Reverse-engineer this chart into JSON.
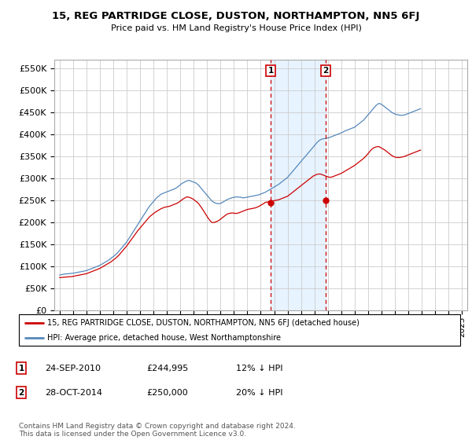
{
  "title": "15, REG PARTRIDGE CLOSE, DUSTON, NORTHAMPTON, NN5 6FJ",
  "subtitle": "Price paid vs. HM Land Registry's House Price Index (HPI)",
  "hpi_color": "#5588bb",
  "price_color": "#cc0000",
  "purchase1_date": 2010.73,
  "purchase1_price": 244995,
  "purchase2_date": 2014.83,
  "purchase2_price": 250000,
  "bg_color": "#ffffff",
  "grid_color": "#cccccc",
  "shade_color": "#ddeeff",
  "legend_line1": "15, REG PARTRIDGE CLOSE, DUSTON, NORTHAMPTON, NN5 6FJ (detached house)",
  "legend_line2": "HPI: Average price, detached house, West Northamptonshire",
  "footnote": "Contains HM Land Registry data © Crown copyright and database right 2024.\nThis data is licensed under the Open Government Licence v3.0.",
  "yticks": [
    0,
    50000,
    100000,
    150000,
    200000,
    250000,
    300000,
    350000,
    400000,
    450000,
    500000,
    550000
  ],
  "ytick_labels": [
    "£0",
    "£50K",
    "£100K",
    "£150K",
    "£200K",
    "£250K",
    "£300K",
    "£350K",
    "£400K",
    "£450K",
    "£500K",
    "£550K"
  ],
  "ylim": [
    0,
    570000
  ],
  "hpi_monthly": [
    80000,
    80500,
    81000,
    81500,
    82000,
    82200,
    82500,
    82800,
    83000,
    83200,
    83500,
    83800,
    84000,
    84500,
    85000,
    85500,
    86000,
    86500,
    87000,
    87500,
    88000,
    88500,
    89000,
    89500,
    90000,
    91000,
    92000,
    93000,
    94000,
    95000,
    96000,
    97000,
    98000,
    99000,
    100000,
    101000,
    102000,
    103500,
    105000,
    106500,
    108000,
    109500,
    111000,
    112500,
    114000,
    116000,
    118000,
    120000,
    122000,
    124000,
    126000,
    128500,
    131000,
    134000,
    137000,
    140000,
    143000,
    146000,
    149000,
    152000,
    155000,
    159000,
    163000,
    167000,
    171000,
    175000,
    179000,
    183000,
    187000,
    191000,
    195000,
    199000,
    203000,
    207000,
    211000,
    215000,
    219000,
    223000,
    227000,
    231000,
    235000,
    238000,
    241000,
    244000,
    247000,
    250000,
    253000,
    256000,
    258000,
    260000,
    262000,
    264000,
    265000,
    266000,
    267000,
    268000,
    269000,
    270000,
    271000,
    272000,
    273000,
    274000,
    275000,
    276000,
    277500,
    279000,
    281000,
    283000,
    285000,
    287000,
    289000,
    290000,
    291500,
    293000,
    294000,
    294500,
    295000,
    294000,
    293000,
    292000,
    291000,
    290000,
    289000,
    287000,
    285000,
    282000,
    279000,
    276000,
    273000,
    270000,
    267000,
    264000,
    261000,
    258000,
    255000,
    252000,
    249000,
    247000,
    245000,
    244000,
    243000,
    242500,
    242000,
    242000,
    243000,
    244000,
    245500,
    247000,
    248500,
    250000,
    251500,
    252500,
    253500,
    254500,
    255500,
    256000,
    256500,
    257000,
    257500,
    257500,
    257000,
    257000,
    256500,
    256000,
    255500,
    255500,
    256000,
    256500,
    257000,
    257500,
    258000,
    258500,
    259000,
    259500,
    260000,
    260500,
    261000,
    261500,
    262000,
    263000,
    264000,
    265000,
    266000,
    267000,
    268000,
    269500,
    271000,
    272500,
    274000,
    275500,
    277000,
    278500,
    280000,
    281500,
    283000,
    284500,
    286000,
    288000,
    290000,
    292000,
    294000,
    296000,
    298000,
    300000,
    302000,
    305000,
    308000,
    311000,
    314000,
    317000,
    320000,
    323000,
    326000,
    329000,
    332000,
    335000,
    338000,
    341000,
    344000,
    347000,
    350000,
    353000,
    356000,
    359000,
    362000,
    365000,
    368000,
    371000,
    374000,
    377000,
    380000,
    383000,
    385000,
    387000,
    388000,
    389000,
    389500,
    390000,
    390500,
    391000,
    391500,
    392000,
    393000,
    394000,
    395000,
    396000,
    397000,
    398000,
    399000,
    400000,
    401000,
    402000,
    403000,
    404000,
    405500,
    407000,
    408000,
    409000,
    410000,
    411000,
    412000,
    413000,
    414000,
    415000,
    416000,
    418000,
    420000,
    422000,
    424000,
    426000,
    428000,
    430000,
    432000,
    435000,
    438000,
    441000,
    444000,
    447000,
    450000,
    453000,
    456000,
    459000,
    462000,
    465000,
    467000,
    469000,
    470000,
    469000,
    468000,
    466000,
    464000,
    462000,
    460000,
    458000,
    456000,
    454000,
    452000,
    450000,
    448500,
    447000,
    446000,
    445000,
    444500,
    444000,
    443500,
    443000,
    443000,
    443000,
    443500,
    444000,
    445000,
    446000,
    447000,
    448000,
    449000,
    450000,
    451000,
    452000,
    453000,
    454000,
    455000,
    456000,
    457000,
    458000
  ],
  "red_monthly": [
    74000,
    74200,
    74500,
    74800,
    75000,
    75200,
    75400,
    75600,
    75800,
    76000,
    76200,
    76500,
    77000,
    77500,
    78000,
    78500,
    79000,
    79500,
    80000,
    80500,
    81000,
    81500,
    82000,
    82500,
    83000,
    84000,
    85000,
    86000,
    87000,
    88000,
    89000,
    90000,
    91000,
    92000,
    93000,
    94000,
    95000,
    96500,
    98000,
    99500,
    101000,
    102500,
    104000,
    105500,
    107000,
    108500,
    110000,
    112000,
    114000,
    116000,
    118000,
    120000,
    122500,
    125000,
    128000,
    131000,
    134000,
    137000,
    140000,
    143000,
    146000,
    149500,
    153000,
    156500,
    160000,
    163500,
    167000,
    170500,
    174000,
    177500,
    181000,
    184000,
    187000,
    190000,
    193000,
    196000,
    199000,
    202000,
    205000,
    208000,
    211000,
    213500,
    215500,
    217500,
    219500,
    221500,
    223500,
    225000,
    226500,
    228000,
    229500,
    231000,
    232000,
    233000,
    234000,
    234500,
    235000,
    235500,
    236000,
    237000,
    238000,
    239000,
    240000,
    241000,
    242000,
    243000,
    244500,
    246000,
    248000,
    250000,
    252000,
    253500,
    255000,
    256500,
    257500,
    257000,
    256500,
    255500,
    254500,
    253000,
    251500,
    249500,
    247500,
    245500,
    243000,
    240000,
    236500,
    233000,
    229000,
    225000,
    221000,
    217000,
    213000,
    209000,
    205500,
    202500,
    200000,
    199000,
    199500,
    200000,
    201000,
    202000,
    203500,
    205000,
    207000,
    209000,
    211000,
    213000,
    215000,
    217000,
    218500,
    219500,
    220000,
    220500,
    221000,
    221000,
    220500,
    220000,
    220000,
    220500,
    221000,
    222000,
    223000,
    224000,
    225000,
    226000,
    227000,
    228000,
    229000,
    229500,
    230000,
    230500,
    231000,
    231500,
    232000,
    232500,
    233500,
    234500,
    235500,
    237000,
    238500,
    240000,
    241500,
    243000,
    244995,
    245500,
    246000,
    246500,
    247000,
    247500,
    248000,
    248500,
    249000,
    249500,
    250000,
    250500,
    251000,
    252000,
    253000,
    254000,
    255000,
    256000,
    257000,
    258000,
    259000,
    261000,
    263000,
    265000,
    267000,
    269000,
    271000,
    273000,
    275000,
    277000,
    279000,
    281000,
    283000,
    285000,
    287000,
    289000,
    291000,
    293000,
    295000,
    297000,
    299000,
    301000,
    303000,
    305000,
    306000,
    307500,
    308500,
    309000,
    309500,
    309500,
    309000,
    308000,
    307000,
    306000,
    305000,
    304000,
    303000,
    302500,
    302000,
    302500,
    303000,
    304000,
    305000,
    306000,
    307000,
    308000,
    309000,
    310000,
    311000,
    312500,
    314000,
    315500,
    317000,
    318500,
    320000,
    321500,
    323000,
    324500,
    326000,
    327500,
    329000,
    331000,
    333000,
    335000,
    337000,
    339000,
    341000,
    343000,
    345000,
    347500,
    350000,
    353000,
    356000,
    359000,
    362000,
    365000,
    367000,
    369000,
    370000,
    371000,
    371500,
    372000,
    371500,
    370000,
    368500,
    367000,
    365500,
    364000,
    362000,
    360000,
    358000,
    356000,
    354000,
    352000,
    350500,
    349000,
    348000,
    347500,
    347000,
    347000,
    347000,
    347500,
    348000,
    348500,
    349000,
    350000,
    351000,
    352000,
    353000,
    354000,
    355000,
    356000,
    357000,
    358000,
    359000,
    360000,
    361000,
    362000,
    363000,
    364000
  ]
}
